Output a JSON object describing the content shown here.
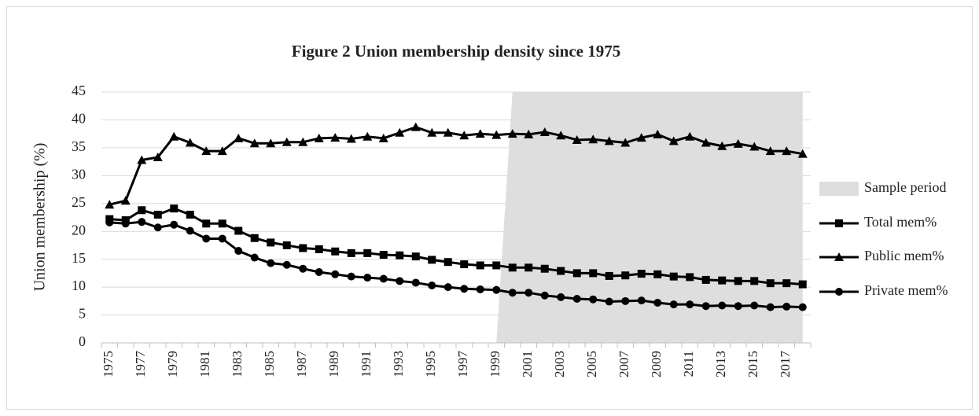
{
  "chart_data": {
    "type": "line",
    "title": "Figure 2 Union membership density since 1975",
    "y_label": "Union membership (%)",
    "categories": [
      "1975",
      null,
      "1977",
      null,
      "1979",
      null,
      "1981",
      null,
      "1983",
      null,
      "1985",
      null,
      "1987",
      null,
      "1989",
      null,
      "1991",
      null,
      "1993",
      null,
      "1995",
      null,
      "1997",
      null,
      "1999",
      null,
      "2001",
      null,
      "2003",
      null,
      "2005",
      null,
      "2007",
      null,
      "2009",
      null,
      "2011",
      null,
      "2013",
      null,
      "2015",
      null,
      "2017",
      null
    ],
    "series": [
      {
        "name": "Sample period",
        "type": "area",
        "color": "#dedede",
        "values": [
          0,
          0,
          0,
          0,
          0,
          0,
          0,
          0,
          0,
          0,
          0,
          0,
          0,
          0,
          0,
          0,
          0,
          0,
          0,
          0,
          0,
          0,
          0,
          0,
          0,
          45,
          45,
          45,
          45,
          45,
          45,
          45,
          45,
          45,
          45,
          45,
          45,
          45,
          45,
          45,
          45,
          45,
          45,
          45
        ]
      },
      {
        "name": "Total mem%",
        "type": "line",
        "marker": "square",
        "color": "#000000",
        "values": [
          22.2,
          22.0,
          23.8,
          23.0,
          24.1,
          23.0,
          21.4,
          21.4,
          20.1,
          18.8,
          18.0,
          17.5,
          17.0,
          16.8,
          16.4,
          16.1,
          16.1,
          15.8,
          15.7,
          15.5,
          14.9,
          14.5,
          14.1,
          13.9,
          13.9,
          13.5,
          13.5,
          13.3,
          12.9,
          12.5,
          12.5,
          12.0,
          12.1,
          12.4,
          12.3,
          11.9,
          11.8,
          11.3,
          11.2,
          11.1,
          11.1,
          10.7,
          10.7,
          10.5
        ]
      },
      {
        "name": "Public mem%",
        "type": "line",
        "marker": "triangle",
        "color": "#000000",
        "values": [
          24.8,
          25.5,
          32.8,
          33.3,
          37.0,
          35.9,
          34.4,
          34.4,
          36.7,
          35.8,
          35.8,
          36.0,
          36.0,
          36.7,
          36.8,
          36.6,
          37.0,
          36.7,
          37.7,
          38.7,
          37.7,
          37.7,
          37.2,
          37.5,
          37.3,
          37.5,
          37.4,
          37.8,
          37.2,
          36.4,
          36.5,
          36.2,
          35.9,
          36.8,
          37.4,
          36.2,
          37.0,
          35.9,
          35.3,
          35.7,
          35.2,
          34.4,
          34.4,
          33.9
        ]
      },
      {
        "name": "Private mem%",
        "type": "line",
        "marker": "circle",
        "color": "#000000",
        "values": [
          21.6,
          21.4,
          21.7,
          20.7,
          21.2,
          20.1,
          18.7,
          18.7,
          16.5,
          15.3,
          14.3,
          14.0,
          13.3,
          12.7,
          12.3,
          11.9,
          11.7,
          11.5,
          11.1,
          10.8,
          10.3,
          10.0,
          9.7,
          9.6,
          9.5,
          9.0,
          9.0,
          8.5,
          8.2,
          7.9,
          7.8,
          7.4,
          7.5,
          7.6,
          7.2,
          6.9,
          6.9,
          6.6,
          6.7,
          6.6,
          6.7,
          6.4,
          6.5,
          6.4
        ]
      }
    ],
    "ylim": [
      0,
      45
    ],
    "yticks": [
      0,
      5,
      10,
      15,
      20,
      25,
      30,
      35,
      40,
      45
    ],
    "grid": true,
    "legend": "right"
  }
}
